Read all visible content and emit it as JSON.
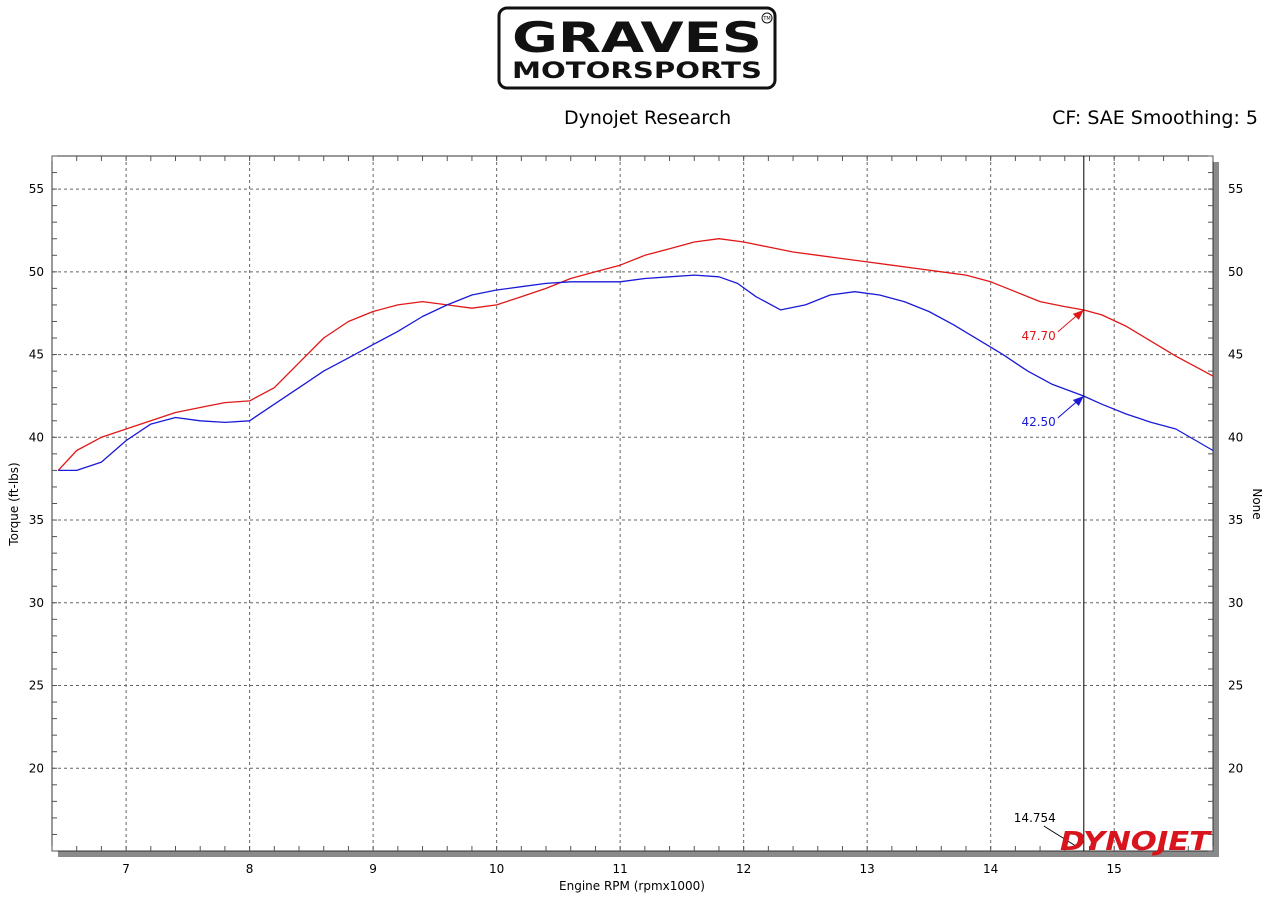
{
  "logo": {
    "line1": "GRAVES",
    "line2": "MOTORSPORTS",
    "trademark": "TM"
  },
  "header": {
    "left": "Dynojet Research",
    "right": "CF: SAE Smoothing: 5"
  },
  "watermark": "DYNOJET",
  "chart_data": {
    "type": "line",
    "xlabel": "Engine RPM (rpmx1000)",
    "ylabel": "Torque (ft-lbs)",
    "y2label": "None",
    "xlim": [
      6.4,
      15.8
    ],
    "ylim": [
      15,
      57
    ],
    "x_ticks": [
      7,
      8,
      9,
      10,
      11,
      12,
      13,
      14,
      15
    ],
    "y_ticks": [
      20,
      25,
      30,
      35,
      40,
      45,
      50,
      55
    ],
    "grid": true,
    "cursor": {
      "x": 14.754,
      "label": "14.754"
    },
    "series": [
      {
        "color": "#e01818",
        "cursor_value": "47.70",
        "x": [
          6.45,
          6.6,
          6.8,
          7.0,
          7.2,
          7.4,
          7.6,
          7.8,
          8.0,
          8.2,
          8.4,
          8.6,
          8.8,
          9.0,
          9.2,
          9.4,
          9.6,
          9.8,
          10.0,
          10.2,
          10.4,
          10.6,
          10.8,
          11.0,
          11.2,
          11.4,
          11.6,
          11.8,
          12.0,
          12.2,
          12.4,
          12.6,
          12.8,
          13.0,
          13.2,
          13.4,
          13.6,
          13.8,
          14.0,
          14.2,
          14.4,
          14.6,
          14.75,
          14.9,
          15.1,
          15.3,
          15.5,
          15.8
        ],
        "y": [
          38.0,
          39.2,
          40.0,
          40.5,
          41.0,
          41.5,
          41.8,
          42.1,
          42.2,
          43.0,
          44.5,
          46.0,
          47.0,
          47.6,
          48.0,
          48.2,
          48.0,
          47.8,
          48.0,
          48.5,
          49.0,
          49.6,
          50.0,
          50.4,
          51.0,
          51.4,
          51.8,
          52.0,
          51.8,
          51.5,
          51.2,
          51.0,
          50.8,
          50.6,
          50.4,
          50.2,
          50.0,
          49.8,
          49.4,
          48.8,
          48.2,
          47.9,
          47.7,
          47.4,
          46.7,
          45.8,
          44.9,
          43.7
        ]
      },
      {
        "color": "#1a1ad8",
        "cursor_value": "42.50",
        "x": [
          6.45,
          6.6,
          6.8,
          7.0,
          7.2,
          7.4,
          7.6,
          7.8,
          8.0,
          8.2,
          8.4,
          8.6,
          8.8,
          9.0,
          9.2,
          9.4,
          9.6,
          9.8,
          10.0,
          10.2,
          10.4,
          10.6,
          10.8,
          11.0,
          11.2,
          11.4,
          11.6,
          11.8,
          11.95,
          12.1,
          12.3,
          12.5,
          12.7,
          12.9,
          13.1,
          13.3,
          13.5,
          13.7,
          13.9,
          14.1,
          14.3,
          14.5,
          14.75,
          14.9,
          15.1,
          15.3,
          15.5,
          15.8
        ],
        "y": [
          38.0,
          38.0,
          38.5,
          39.8,
          40.8,
          41.2,
          41.0,
          40.9,
          41.0,
          42.0,
          43.0,
          44.0,
          44.8,
          45.6,
          46.4,
          47.3,
          48.0,
          48.6,
          48.9,
          49.1,
          49.3,
          49.4,
          49.4,
          49.4,
          49.6,
          49.7,
          49.8,
          49.7,
          49.3,
          48.5,
          47.7,
          48.0,
          48.6,
          48.8,
          48.6,
          48.2,
          47.6,
          46.8,
          45.9,
          45.0,
          44.0,
          43.2,
          42.5,
          42.0,
          41.4,
          40.9,
          40.5,
          39.2
        ]
      }
    ]
  }
}
